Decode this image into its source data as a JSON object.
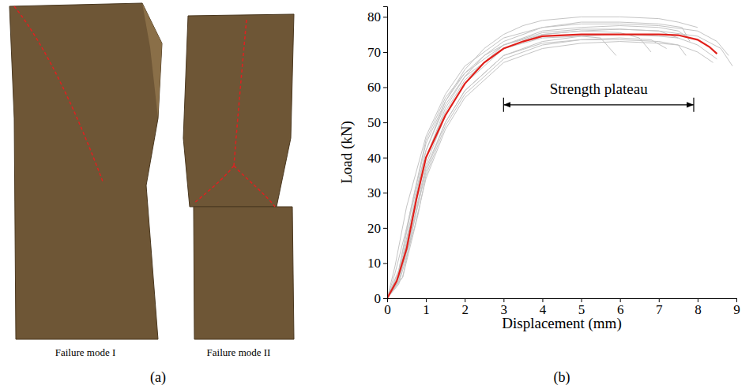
{
  "panels": [
    {
      "label": "(a)",
      "captions": [
        "Failure mode I",
        "Failure mode II"
      ]
    },
    {
      "label": "(b)"
    }
  ],
  "chart_data": {
    "type": "line",
    "x_label": "Displacement (mm)",
    "y_label": "Load (kN)",
    "xlim": [
      0,
      9
    ],
    "ylim": [
      0,
      83
    ],
    "xticks": [
      0,
      1,
      2,
      3,
      4,
      5,
      6,
      7,
      8,
      9
    ],
    "yticks": [
      0,
      10,
      20,
      30,
      40,
      50,
      60,
      70,
      80
    ],
    "grid": false,
    "annotations": [
      {
        "text": "Strength plateau",
        "x": [
          3,
          7.9
        ],
        "y": 55
      }
    ],
    "series": [
      {
        "color": "#c4c4c4",
        "x": [
          0,
          0.3,
          0.6,
          1,
          1.5,
          2,
          2.5,
          3,
          3.5,
          4,
          5,
          6,
          7,
          7.5,
          8
        ],
        "values": [
          0,
          8,
          24,
          42,
          56,
          65,
          71,
          75,
          77.5,
          79,
          80,
          80,
          79.5,
          78.5,
          77
        ]
      },
      {
        "color": "#c4c4c4",
        "x": [
          0,
          0.3,
          0.6,
          1,
          1.5,
          2,
          2.5,
          3,
          4,
          5,
          6,
          7,
          7.6,
          7.8
        ],
        "values": [
          0,
          6,
          20,
          40,
          54,
          63,
          69,
          73,
          77,
          78.5,
          78.5,
          78,
          77,
          73
        ]
      },
      {
        "color": "#c4c4c4",
        "x": [
          0,
          0.2,
          0.5,
          1,
          1.5,
          2,
          2.5,
          3,
          4,
          5,
          6,
          7,
          8,
          8.6,
          8.9
        ],
        "values": [
          0,
          7,
          20,
          44,
          56,
          64,
          69,
          72,
          75,
          76,
          76.5,
          76,
          74.5,
          71,
          66
        ]
      },
      {
        "color": "#c4c4c4",
        "x": [
          0,
          0.3,
          0.6,
          1,
          1.5,
          2,
          3,
          4,
          5,
          6,
          6.5,
          6.8
        ],
        "values": [
          0,
          5,
          18,
          38,
          52,
          61,
          71,
          75,
          76,
          75.5,
          74,
          70
        ]
      },
      {
        "color": "#c4c4c4",
        "x": [
          0,
          0.4,
          0.7,
          1,
          1.5,
          2,
          3,
          4,
          5,
          6,
          7,
          7.5,
          8,
          8.5
        ],
        "values": [
          0,
          6,
          22,
          36,
          50,
          59,
          69,
          73,
          74.5,
          75,
          74.5,
          74,
          72,
          68
        ]
      },
      {
        "color": "#c4c4c4",
        "x": [
          0,
          0.3,
          0.6,
          1,
          1.5,
          2,
          3,
          4,
          5,
          5.5,
          5.9
        ],
        "values": [
          0,
          7,
          22,
          42,
          55,
          63,
          71,
          74,
          74.5,
          74,
          69
        ]
      },
      {
        "color": "#c4c4c4",
        "x": [
          0,
          0.3,
          0.7,
          1,
          1.5,
          2,
          3,
          4,
          5,
          6,
          7,
          7.5,
          7.7
        ],
        "values": [
          0,
          4,
          20,
          34,
          48,
          57,
          67,
          71,
          72.5,
          73,
          72.5,
          72,
          69
        ]
      },
      {
        "color": "#c4c4c4",
        "x": [
          0,
          0.2,
          0.5,
          1,
          1.5,
          2,
          3,
          4,
          5,
          6,
          7,
          8,
          8.5,
          8.8
        ],
        "values": [
          0,
          9,
          26,
          46,
          58,
          66,
          74,
          77,
          78,
          78,
          77.5,
          76,
          73,
          69
        ]
      },
      {
        "color": "#c4c4c4",
        "x": [
          0,
          0.3,
          0.6,
          1,
          1.5,
          2,
          3,
          4,
          5,
          6,
          7,
          7.5,
          8,
          8.4
        ],
        "values": [
          0,
          5,
          17,
          37,
          50,
          59,
          69,
          72.5,
          73.5,
          73.5,
          73,
          72,
          70,
          67
        ]
      },
      {
        "color": "#c4c4c4",
        "x": [
          0,
          0.3,
          0.6,
          1,
          1.5,
          2,
          3,
          4,
          5,
          6,
          7,
          7.5
        ],
        "values": [
          0,
          8,
          25,
          45,
          57,
          64,
          72,
          75.5,
          76.5,
          76.5,
          76,
          74
        ]
      },
      {
        "color": "#c4c4c4",
        "x": [
          0,
          0.4,
          0.8,
          1,
          1.5,
          2,
          3,
          4,
          5,
          6,
          6.8,
          7.2
        ],
        "values": [
          0,
          6,
          24,
          35,
          49,
          58,
          68,
          72,
          73.5,
          74,
          73.5,
          71
        ]
      },
      {
        "color": "#c4c4c4",
        "x": [
          0,
          0.3,
          0.6,
          1,
          1.5,
          2,
          3,
          4,
          5,
          6,
          7,
          7.5,
          7.7
        ],
        "values": [
          0,
          6,
          21,
          40,
          53,
          62,
          72,
          76,
          77,
          77.5,
          77,
          76,
          74.5
        ]
      },
      {
        "color": "#e0201b",
        "x": [
          0,
          0.25,
          0.5,
          0.75,
          1,
          1.5,
          2,
          2.5,
          3,
          3.5,
          4,
          5,
          6,
          7,
          7.5,
          8,
          8.3,
          8.5
        ],
        "values": [
          0,
          5,
          14,
          28,
          40,
          52,
          61,
          67,
          71,
          73,
          74.5,
          75,
          75,
          75,
          74.8,
          73.5,
          71.5,
          69.5
        ]
      }
    ]
  }
}
